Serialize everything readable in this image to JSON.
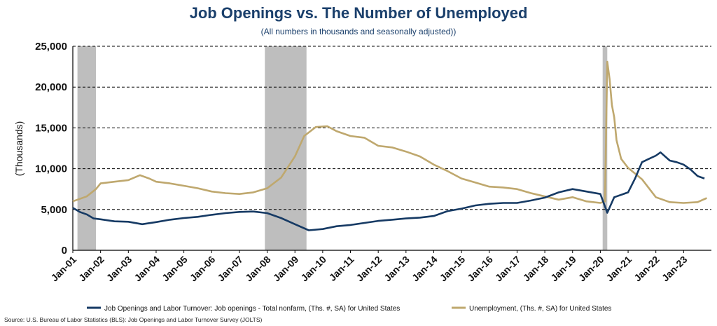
{
  "chart_data": {
    "type": "line",
    "title": "Job Openings vs. The Number of Unemployed",
    "subtitle": "(All numbers in thousands and seasonally adjusted))",
    "ylabel": "(Thousands)",
    "xlabel": "",
    "ylim": [
      0,
      25000
    ],
    "y_ticks": [
      "0",
      "5,000",
      "10,000",
      "15,000",
      "20,000",
      "25,000"
    ],
    "x_ticks": [
      "Jan-01",
      "Jan-02",
      "Jan-03",
      "Jan-04",
      "Jan-05",
      "Jan-06",
      "Jan-07",
      "Jan-08",
      "Jan-09",
      "Jan-10",
      "Jan-11",
      "Jan-12",
      "Jan-13",
      "Jan-14",
      "Jan-15",
      "Jan-16",
      "Jan-17",
      "Jan-18",
      "Jan-19",
      "Jan-20",
      "Jan-21",
      "Jan-22",
      "Jan-23"
    ],
    "grid": "horizontal dashed",
    "legend_position": "bottom",
    "recessions": [
      {
        "start": "2001-03",
        "end": "2001-11"
      },
      {
        "start": "2007-12",
        "end": "2009-06"
      },
      {
        "start": "2020-02",
        "end": "2020-04"
      }
    ],
    "colors": {
      "openings": "#163a64",
      "unemployment": "#bfa86e",
      "recession": "#bebebe"
    },
    "series": [
      {
        "name": "Job Openings and Labor Turnover: Job openings - Total nonfarm, (Ths. #, SA) for United States",
        "points": [
          [
            "2001-01",
            5200
          ],
          [
            "2001-04",
            4700
          ],
          [
            "2001-07",
            4400
          ],
          [
            "2001-10",
            3900
          ],
          [
            "2002-01",
            3800
          ],
          [
            "2002-07",
            3550
          ],
          [
            "2003-01",
            3500
          ],
          [
            "2003-07",
            3200
          ],
          [
            "2004-01",
            3450
          ],
          [
            "2004-07",
            3750
          ],
          [
            "2005-01",
            3950
          ],
          [
            "2005-07",
            4100
          ],
          [
            "2006-01",
            4350
          ],
          [
            "2006-07",
            4550
          ],
          [
            "2007-01",
            4700
          ],
          [
            "2007-07",
            4750
          ],
          [
            "2008-01",
            4550
          ],
          [
            "2008-07",
            3950
          ],
          [
            "2009-01",
            3200
          ],
          [
            "2009-07",
            2450
          ],
          [
            "2010-01",
            2600
          ],
          [
            "2010-07",
            2950
          ],
          [
            "2011-01",
            3100
          ],
          [
            "2011-07",
            3350
          ],
          [
            "2012-01",
            3600
          ],
          [
            "2012-07",
            3750
          ],
          [
            "2013-01",
            3900
          ],
          [
            "2013-07",
            4000
          ],
          [
            "2014-01",
            4200
          ],
          [
            "2014-07",
            4800
          ],
          [
            "2015-01",
            5100
          ],
          [
            "2015-07",
            5500
          ],
          [
            "2016-01",
            5700
          ],
          [
            "2016-07",
            5800
          ],
          [
            "2017-01",
            5800
          ],
          [
            "2017-07",
            6100
          ],
          [
            "2018-01",
            6450
          ],
          [
            "2018-07",
            7100
          ],
          [
            "2019-01",
            7500
          ],
          [
            "2019-07",
            7200
          ],
          [
            "2020-01",
            6900
          ],
          [
            "2020-04",
            4600
          ],
          [
            "2020-07",
            6500
          ],
          [
            "2021-01",
            7100
          ],
          [
            "2021-04",
            8800
          ],
          [
            "2021-07",
            10800
          ],
          [
            "2021-10",
            11200
          ],
          [
            "2022-01",
            11600
          ],
          [
            "2022-03",
            12000
          ],
          [
            "2022-07",
            11000
          ],
          [
            "2022-10",
            10800
          ],
          [
            "2023-01",
            10500
          ],
          [
            "2023-04",
            9900
          ],
          [
            "2023-07",
            9100
          ],
          [
            "2023-10",
            8800
          ]
        ]
      },
      {
        "name": "Unemployment, (Ths. #, SA) for United States",
        "points": [
          [
            "2001-01",
            6000
          ],
          [
            "2001-07",
            6600
          ],
          [
            "2001-11",
            7500
          ],
          [
            "2002-01",
            8200
          ],
          [
            "2002-07",
            8400
          ],
          [
            "2003-01",
            8600
          ],
          [
            "2003-06",
            9200
          ],
          [
            "2003-10",
            8800
          ],
          [
            "2004-01",
            8400
          ],
          [
            "2004-07",
            8200
          ],
          [
            "2005-01",
            7900
          ],
          [
            "2005-07",
            7600
          ],
          [
            "2006-01",
            7200
          ],
          [
            "2006-07",
            7000
          ],
          [
            "2007-01",
            6900
          ],
          [
            "2007-07",
            7100
          ],
          [
            "2008-01",
            7600
          ],
          [
            "2008-07",
            8900
          ],
          [
            "2009-01",
            11500
          ],
          [
            "2009-05",
            14000
          ],
          [
            "2009-10",
            15100
          ],
          [
            "2010-03",
            15200
          ],
          [
            "2010-07",
            14600
          ],
          [
            "2011-01",
            14000
          ],
          [
            "2011-07",
            13800
          ],
          [
            "2012-01",
            12800
          ],
          [
            "2012-07",
            12600
          ],
          [
            "2013-01",
            12100
          ],
          [
            "2013-07",
            11500
          ],
          [
            "2014-01",
            10500
          ],
          [
            "2014-07",
            9700
          ],
          [
            "2015-01",
            8800
          ],
          [
            "2015-07",
            8300
          ],
          [
            "2016-01",
            7800
          ],
          [
            "2016-07",
            7700
          ],
          [
            "2017-01",
            7500
          ],
          [
            "2017-07",
            7000
          ],
          [
            "2018-01",
            6600
          ],
          [
            "2018-07",
            6200
          ],
          [
            "2019-01",
            6500
          ],
          [
            "2019-07",
            6000
          ],
          [
            "2020-01",
            5800
          ],
          [
            "2020-03",
            6000
          ],
          [
            "2020-04",
            23100
          ],
          [
            "2020-05",
            21000
          ],
          [
            "2020-06",
            17800
          ],
          [
            "2020-07",
            16300
          ],
          [
            "2020-08",
            13500
          ],
          [
            "2020-10",
            11200
          ],
          [
            "2021-01",
            10100
          ],
          [
            "2021-07",
            8700
          ],
          [
            "2022-01",
            6500
          ],
          [
            "2022-07",
            5900
          ],
          [
            "2023-01",
            5800
          ],
          [
            "2023-07",
            5900
          ],
          [
            "2023-11",
            6400
          ]
        ]
      }
    ],
    "source": "Source: U.S. Bureau of Labor Statistics (BLS): Job Openings and Labor Turnover Survey (JOLTS)"
  }
}
